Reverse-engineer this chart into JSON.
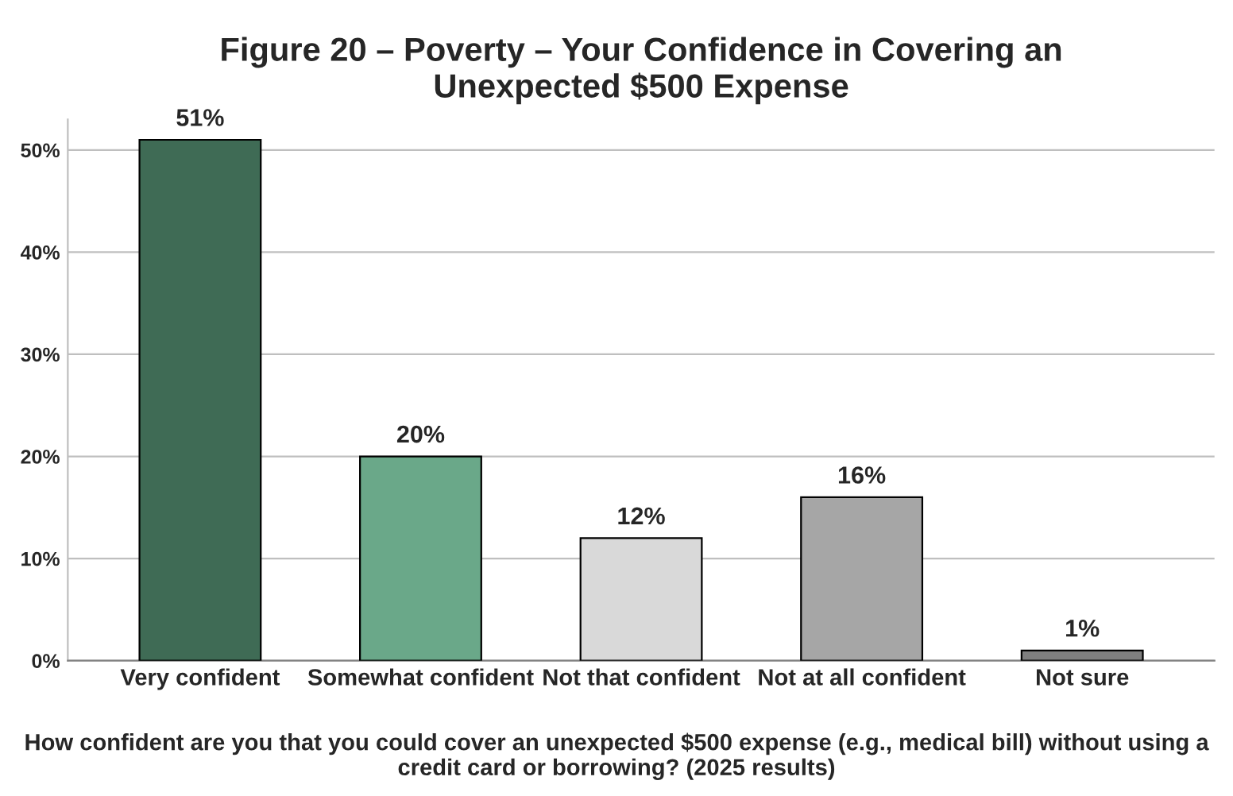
{
  "chart_data": {
    "type": "bar",
    "title": "Figure 20 – Poverty – Your Confidence in Covering an\nUnexpected $500 Expense",
    "categories": [
      "Very confident",
      "Somewhat confident",
      "Not that confident",
      "Not at all confident",
      "Not sure"
    ],
    "values": [
      51,
      20,
      12,
      16,
      1
    ],
    "colors": [
      "#3f6b55",
      "#6aa889",
      "#d9d9d9",
      "#a6a6a6",
      "#7f7f7f"
    ],
    "value_labels": [
      "51%",
      "20%",
      "12%",
      "16%",
      "1%"
    ],
    "xlabel": "How confident are you that you could cover an unexpected $500 expense (e.g., medical bill) without using a credit card or borrowing? (2025 results)",
    "ylim": [
      0,
      53
    ],
    "yticks": [
      {
        "value": 0,
        "label": "0%"
      },
      {
        "value": 10,
        "label": "10%"
      },
      {
        "value": 20,
        "label": "20%"
      },
      {
        "value": 30,
        "label": "30%"
      },
      {
        "value": 40,
        "label": "40%"
      },
      {
        "value": 50,
        "label": "50%"
      }
    ],
    "grid": "y"
  }
}
